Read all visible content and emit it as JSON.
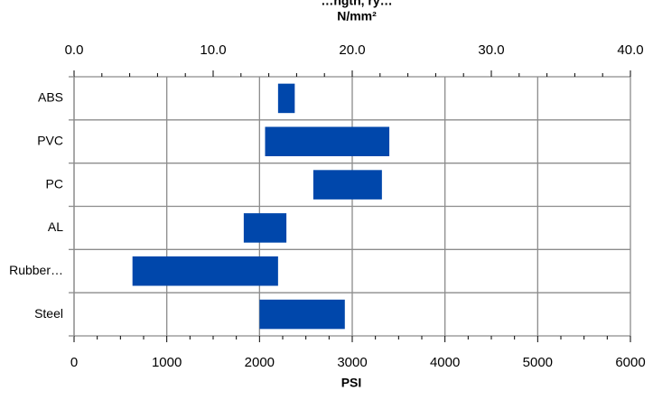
{
  "chart_data": {
    "type": "bar",
    "subtype": "floating-horizontal-range",
    "title": "…ngth, ry…",
    "top_axis_label": "N/mm²",
    "xlabel": "PSI",
    "ylabel": "",
    "categories": [
      "ABS",
      "PVC",
      "PC",
      "AL",
      "Rubber…",
      "Steel"
    ],
    "series": [
      {
        "ranges": [
          [
            2200,
            2380
          ],
          [
            2060,
            3400
          ],
          [
            2580,
            3320
          ],
          [
            1830,
            2290
          ],
          [
            630,
            2200
          ],
          [
            2000,
            2920
          ]
        ]
      }
    ],
    "xlim": [
      0,
      6000
    ],
    "xticks": [
      "0",
      "1000",
      "2000",
      "3000",
      "4000",
      "5000",
      "6000"
    ],
    "top_axis_lim": [
      0,
      40
    ],
    "top_ticks": [
      "0.0",
      "10.0",
      "20.0",
      "30.0",
      "40.0"
    ],
    "grid": true,
    "bar_color": "#0047ab",
    "grid_color": "#8c8c8c"
  }
}
